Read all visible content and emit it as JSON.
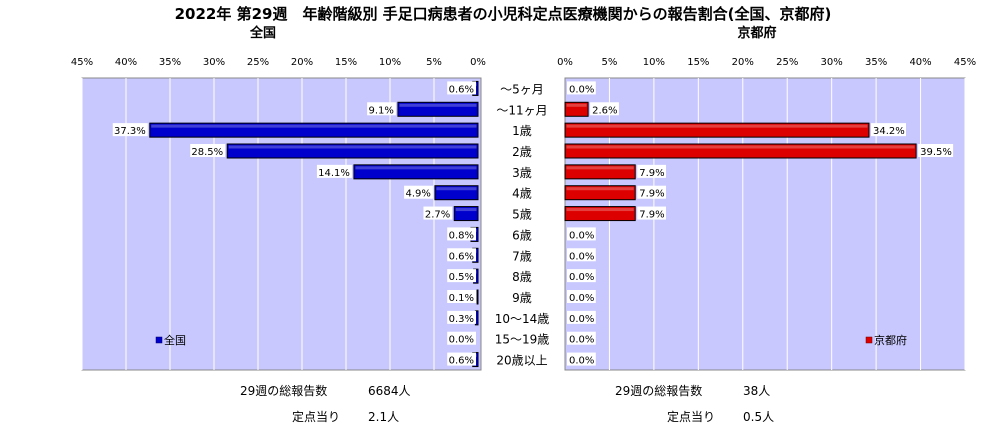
{
  "title": "2022年 第29週　年齢階級別 手足口病患者の小児科定点医療機関からの報告割合(全国、京都府)",
  "chart_data": [
    {
      "type": "bar",
      "orientation": "horizontal",
      "direction": "right-to-left",
      "subtitle": "全国",
      "categories": [
        "～5ヶ月",
        "～11ヶ月",
        "1歳",
        "2歳",
        "3歳",
        "4歳",
        "5歳",
        "6歳",
        "7歳",
        "8歳",
        "9歳",
        "10～14歳",
        "15～19歳",
        "20歳以上"
      ],
      "series": [
        {
          "name": "全国",
          "color": "#0000cc",
          "values": [
            0.6,
            9.1,
            37.3,
            28.5,
            14.1,
            4.9,
            2.7,
            0.8,
            0.6,
            0.5,
            0.1,
            0.3,
            0.0,
            0.6
          ],
          "labels": [
            "0.6%",
            "9.1%",
            "37.3%",
            "28.5%",
            "14.1%",
            "4.9%",
            "2.7%",
            "0.8%",
            "0.6%",
            "0.5%",
            "0.1%",
            "0.3%",
            "0.0%",
            "0.6%"
          ]
        }
      ],
      "xlim": [
        0,
        45
      ],
      "ticks": [
        "45%",
        "40%",
        "35%",
        "30%",
        "25%",
        "20%",
        "15%",
        "10%",
        "5%",
        "0%"
      ],
      "grid": true,
      "legend": "bottom-left",
      "total_label": "29週の総報告数",
      "total_value": "6684人",
      "per_site_label": "定点当り",
      "per_site_value": "2.1人"
    },
    {
      "type": "bar",
      "orientation": "horizontal",
      "direction": "left-to-right",
      "subtitle": "京都府",
      "categories": [
        "～5ヶ月",
        "～11ヶ月",
        "1歳",
        "2歳",
        "3歳",
        "4歳",
        "5歳",
        "6歳",
        "7歳",
        "8歳",
        "9歳",
        "10～14歳",
        "15～19歳",
        "20歳以上"
      ],
      "series": [
        {
          "name": "京都府",
          "color": "#dd0000",
          "values": [
            0.0,
            2.6,
            34.2,
            39.5,
            7.9,
            7.9,
            7.9,
            0.0,
            0.0,
            0.0,
            0.0,
            0.0,
            0.0,
            0.0
          ],
          "labels": [
            "0.0%",
            "2.6%",
            "34.2%",
            "39.5%",
            "7.9%",
            "7.9%",
            "7.9%",
            "0.0%",
            "0.0%",
            "0.0%",
            "0.0%",
            "0.0%",
            "0.0%",
            "0.0%"
          ]
        }
      ],
      "xlim": [
        0,
        45
      ],
      "ticks": [
        "0%",
        "5%",
        "10%",
        "15%",
        "20%",
        "25%",
        "30%",
        "35%",
        "40%",
        "45%"
      ],
      "grid": true,
      "legend": "bottom-right",
      "total_label": "29週の総報告数",
      "total_value": "38人",
      "per_site_label": "定点当り",
      "per_site_value": "0.5人"
    }
  ],
  "colors": {
    "plot_background": "#c8c8ff",
    "gridline": "#ffffff"
  }
}
